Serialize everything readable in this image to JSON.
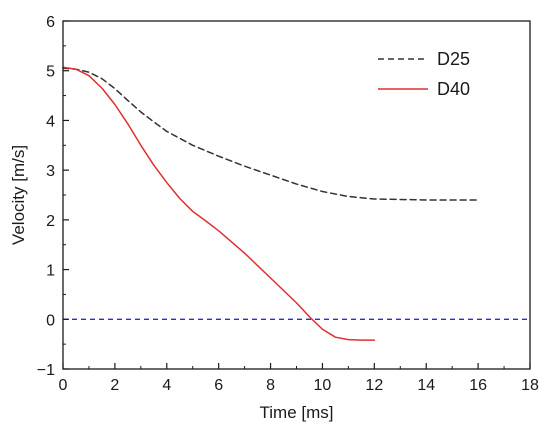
{
  "chart_data": {
    "type": "line",
    "title": "",
    "xlabel": "Time [ms]",
    "ylabel": "Velocity [m/s]",
    "xlim": [
      0,
      18
    ],
    "ylim": [
      -1,
      6
    ],
    "xticks": [
      0,
      2,
      4,
      6,
      8,
      10,
      12,
      14,
      16,
      18
    ],
    "yticks": [
      -1,
      0,
      1,
      2,
      3,
      4,
      5,
      6
    ],
    "grid": false,
    "legend_position": "top-right",
    "series": [
      {
        "name": "D25",
        "style": "dashed",
        "color": "#333333",
        "x": [
          0,
          0.5,
          1,
          1.5,
          2,
          2.5,
          3,
          3.5,
          4,
          5,
          6,
          7,
          8,
          9,
          10,
          11,
          12,
          13,
          14,
          15,
          16
        ],
        "y": [
          5.05,
          5.03,
          4.97,
          4.84,
          4.64,
          4.4,
          4.17,
          3.97,
          3.78,
          3.5,
          3.28,
          3.08,
          2.9,
          2.72,
          2.57,
          2.47,
          2.42,
          2.41,
          2.4,
          2.4,
          2.4
        ]
      },
      {
        "name": "D40",
        "style": "solid",
        "color": "#e03030",
        "x": [
          0,
          0.5,
          1,
          1.5,
          2,
          2.5,
          3,
          3.5,
          4,
          4.5,
          5,
          5.5,
          6,
          7,
          8,
          9,
          9.5,
          10,
          10.5,
          11,
          11.5,
          12
        ],
        "y": [
          5.07,
          5.03,
          4.9,
          4.65,
          4.32,
          3.93,
          3.5,
          3.1,
          2.75,
          2.43,
          2.17,
          1.98,
          1.78,
          1.33,
          0.83,
          0.33,
          0.05,
          -0.2,
          -0.36,
          -0.41,
          -0.42,
          -0.42
        ]
      }
    ],
    "reference_line": {
      "y": 0,
      "style": "dashed",
      "color": "#2a2ae0"
    }
  }
}
